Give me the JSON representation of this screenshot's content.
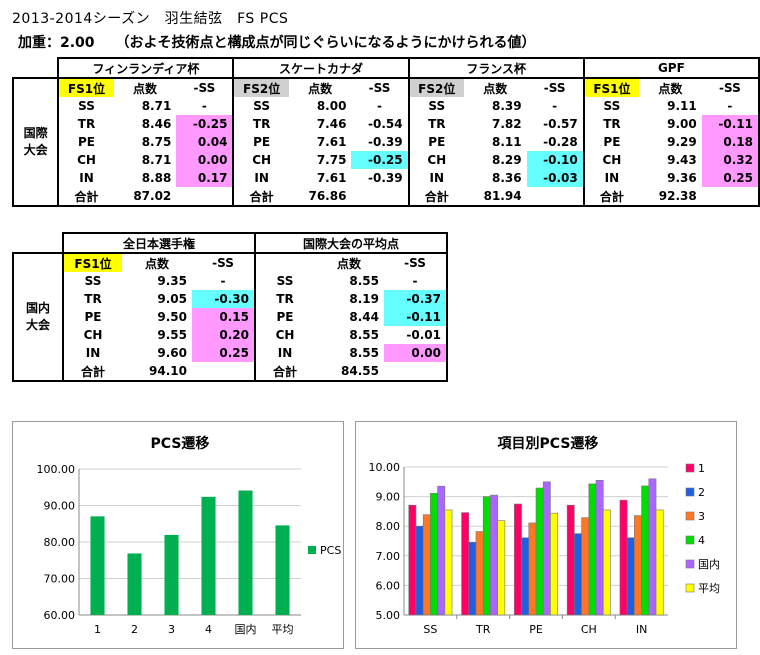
{
  "title": "2013-2014シーズン　羽生結弦　FS PCS",
  "subtitle": "加重：2.00　　（およそ技術点と構成点が同じぐらいになるようにかけられる値）",
  "labels": {
    "score": "点数",
    "ss_diff": "-SS",
    "total": "合計",
    "intl": [
      "国際",
      "大会"
    ],
    "domestic": [
      "国内",
      "大会"
    ]
  },
  "items": [
    "SS",
    "TR",
    "PE",
    "CH",
    "IN"
  ],
  "intl_events": [
    {
      "name": "フィンランディア杯",
      "rank": "FS1位",
      "rank_color": "yellow",
      "scores": [
        "8.71",
        "8.46",
        "8.75",
        "8.71",
        "8.88"
      ],
      "diffs": [
        "-",
        "-0.25",
        "0.04",
        "0.00",
        "0.17"
      ],
      "highlights": [
        "",
        "pink",
        "pink",
        "pink",
        "pink"
      ],
      "total": "87.02"
    },
    {
      "name": "スケートカナダ",
      "rank": "FS2位",
      "rank_color": "gray",
      "scores": [
        "8.00",
        "7.46",
        "7.61",
        "7.75",
        "7.61"
      ],
      "diffs": [
        "-",
        "-0.54",
        "-0.39",
        "-0.25",
        "-0.39"
      ],
      "highlights": [
        "",
        "",
        "",
        "cyan",
        ""
      ],
      "total": "76.86"
    },
    {
      "name": "フランス杯",
      "rank": "FS2位",
      "rank_color": "gray",
      "scores": [
        "8.39",
        "7.82",
        "8.11",
        "8.29",
        "8.36"
      ],
      "diffs": [
        "-",
        "-0.57",
        "-0.28",
        "-0.10",
        "-0.03"
      ],
      "highlights": [
        "",
        "",
        "",
        "cyan",
        "cyan"
      ],
      "total": "81.94"
    },
    {
      "name": "GPF",
      "rank": "FS1位",
      "rank_color": "yellow",
      "scores": [
        "9.11",
        "9.00",
        "9.29",
        "9.43",
        "9.36"
      ],
      "diffs": [
        "-",
        "-0.11",
        "0.18",
        "0.32",
        "0.25"
      ],
      "highlights": [
        "",
        "pink",
        "pink",
        "pink",
        "pink"
      ],
      "total": "92.38"
    }
  ],
  "domestic_events": [
    {
      "name": "全日本選手権",
      "rank": "FS1位",
      "rank_color": "yellow",
      "scores": [
        "9.35",
        "9.05",
        "9.50",
        "9.55",
        "9.60"
      ],
      "diffs": [
        "-",
        "-0.30",
        "0.15",
        "0.20",
        "0.25"
      ],
      "highlights": [
        "",
        "cyan",
        "pink",
        "pink",
        "pink"
      ],
      "total": "94.10"
    },
    {
      "name": "国際大会の平均点",
      "rank": "",
      "rank_color": "",
      "scores": [
        "8.55",
        "8.19",
        "8.44",
        "8.55",
        "8.55"
      ],
      "diffs": [
        "-",
        "-0.37",
        "-0.11",
        "-0.01",
        "0.00"
      ],
      "highlights": [
        "",
        "cyan",
        "cyan",
        "",
        "pink"
      ],
      "total": "84.55"
    }
  ],
  "colors": {
    "bar_green": "#00b050",
    "pink": "#ff99ff",
    "cyan": "#66ffff",
    "yellow": "#ffff00"
  },
  "chart_data": [
    {
      "type": "bar",
      "title": "PCS遷移",
      "categories": [
        "1",
        "2",
        "3",
        "4",
        "国内",
        "平均"
      ],
      "series": [
        {
          "name": "PCS",
          "values": [
            87.02,
            76.86,
            81.94,
            92.38,
            94.1,
            84.55
          ],
          "color": "#00b050"
        }
      ],
      "ylim": [
        60,
        100
      ],
      "yticks": [
        "60.00",
        "70.00",
        "80.00",
        "90.00",
        "100.00"
      ],
      "legend": "right"
    },
    {
      "type": "bar",
      "title": "項目別PCS遷移",
      "categories": [
        "SS",
        "TR",
        "PE",
        "CH",
        "IN"
      ],
      "series": [
        {
          "name": "1",
          "values": [
            8.71,
            8.46,
            8.75,
            8.71,
            8.88
          ],
          "color": "#ff0066"
        },
        {
          "name": "2",
          "values": [
            8.0,
            7.46,
            7.61,
            7.75,
            7.61
          ],
          "color": "#1f5fe0"
        },
        {
          "name": "3",
          "values": [
            8.39,
            7.82,
            8.11,
            8.29,
            8.36
          ],
          "color": "#ff7722"
        },
        {
          "name": "4",
          "values": [
            9.11,
            9.0,
            9.29,
            9.43,
            9.36
          ],
          "color": "#00dd00"
        },
        {
          "name": "国内",
          "values": [
            9.35,
            9.05,
            9.5,
            9.55,
            9.6
          ],
          "color": "#aa66ff"
        },
        {
          "name": "平均",
          "values": [
            8.55,
            8.19,
            8.44,
            8.55,
            8.55
          ],
          "color": "#ffff00"
        }
      ],
      "ylim": [
        5,
        10
      ],
      "yticks": [
        "5.00",
        "6.00",
        "7.00",
        "8.00",
        "9.00",
        "10.00"
      ],
      "legend": "right"
    }
  ]
}
